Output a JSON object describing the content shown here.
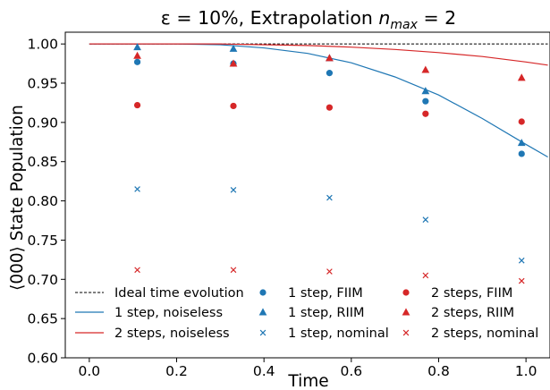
{
  "chart_data": {
    "type": "scatter",
    "title": "ε = 10%, Extrapolation n_max = 2",
    "title_parts": {
      "prefix": "ε = 10%, Extrapolation ",
      "var": "n",
      "sub": "max",
      "suffix": " = 2"
    },
    "xlabel": "Time",
    "ylabel": "⟨000⟩ State Population",
    "xlim": [
      -0.055,
      1.055
    ],
    "ylim": [
      0.6,
      1.015
    ],
    "xticks": [
      0.0,
      0.2,
      0.4,
      0.6,
      0.8,
      1.0
    ],
    "xtick_labels": [
      "0.0",
      "0.2",
      "0.4",
      "0.6",
      "0.8",
      "1.0"
    ],
    "yticks": [
      0.6,
      0.65,
      0.7,
      0.75,
      0.8,
      0.85,
      0.9,
      0.95,
      1.0
    ],
    "ytick_labels": [
      "0.60",
      "0.65",
      "0.70",
      "0.75",
      "0.80",
      "0.85",
      "0.90",
      "0.95",
      "1.00"
    ],
    "grid": false,
    "legend_position": "bottom",
    "colors": {
      "blue": "#1f77b4",
      "red": "#d62728",
      "black": "#000000"
    },
    "lines": [
      {
        "name": "Ideal time evolution",
        "color": "#000000",
        "dash": true,
        "x": [
          0.0,
          1.05
        ],
        "y": [
          1.0,
          1.0
        ]
      },
      {
        "name": "1 step, noiseless",
        "color": "#1f77b4",
        "dash": false,
        "x": [
          0.0,
          0.1,
          0.2,
          0.3,
          0.4,
          0.5,
          0.6,
          0.7,
          0.8,
          0.9,
          1.0,
          1.05
        ],
        "y": [
          1.0,
          1.0,
          1.0,
          0.999,
          0.995,
          0.988,
          0.976,
          0.958,
          0.935,
          0.905,
          0.872,
          0.856
        ]
      },
      {
        "name": "2 steps, noiseless",
        "color": "#d62728",
        "dash": false,
        "x": [
          0.0,
          0.1,
          0.2,
          0.3,
          0.4,
          0.5,
          0.6,
          0.7,
          0.8,
          0.9,
          1.0,
          1.05
        ],
        "y": [
          1.0,
          1.0,
          1.0,
          1.0,
          0.999,
          0.998,
          0.996,
          0.993,
          0.989,
          0.984,
          0.977,
          0.973
        ]
      }
    ],
    "series": [
      {
        "name": "1 step, FIIM",
        "color": "#1f77b4",
        "marker": "circle",
        "x": [
          0.11,
          0.33,
          0.55,
          0.77,
          0.99
        ],
        "y": [
          0.977,
          0.975,
          0.963,
          0.927,
          0.86
        ]
      },
      {
        "name": "1 step, RIIM",
        "color": "#1f77b4",
        "marker": "triangle",
        "x": [
          0.11,
          0.33,
          0.55,
          0.77,
          0.99
        ],
        "y": [
          0.996,
          0.994,
          0.982,
          0.94,
          0.874
        ]
      },
      {
        "name": "1 step, nominal",
        "color": "#1f77b4",
        "marker": "x",
        "x": [
          0.11,
          0.33,
          0.55,
          0.77,
          0.99
        ],
        "y": [
          0.815,
          0.814,
          0.804,
          0.776,
          0.724
        ]
      },
      {
        "name": "2 steps, FIIM",
        "color": "#d62728",
        "marker": "circle",
        "x": [
          0.11,
          0.33,
          0.55,
          0.77,
          0.99
        ],
        "y": [
          0.922,
          0.921,
          0.919,
          0.911,
          0.901
        ]
      },
      {
        "name": "2 steps, RIIM",
        "color": "#d62728",
        "marker": "triangle",
        "x": [
          0.11,
          0.33,
          0.55,
          0.77,
          0.99
        ],
        "y": [
          0.985,
          0.975,
          0.982,
          0.967,
          0.957
        ]
      },
      {
        "name": "2 steps, nominal",
        "color": "#d62728",
        "marker": "x",
        "x": [
          0.11,
          0.33,
          0.55,
          0.77,
          0.99
        ],
        "y": [
          0.712,
          0.712,
          0.71,
          0.705,
          0.698
        ]
      }
    ],
    "legend": [
      {
        "label": "Ideal time evolution",
        "kind": "line",
        "color": "#000000",
        "dash": true
      },
      {
        "label": "1 step, noiseless",
        "kind": "line",
        "color": "#1f77b4",
        "dash": false
      },
      {
        "label": "2 steps, noiseless",
        "kind": "line",
        "color": "#d62728",
        "dash": false
      },
      {
        "label": "1 step, FIIM",
        "kind": "circle",
        "color": "#1f77b4"
      },
      {
        "label": "1 step, RIIM",
        "kind": "triangle",
        "color": "#1f77b4"
      },
      {
        "label": "1 step, nominal",
        "kind": "x",
        "color": "#1f77b4"
      },
      {
        "label": "2 steps, FIIM",
        "kind": "circle",
        "color": "#d62728"
      },
      {
        "label": "2 steps, RIIM",
        "kind": "triangle",
        "color": "#d62728"
      },
      {
        "label": "2 steps, nominal",
        "kind": "x",
        "color": "#d62728"
      }
    ]
  }
}
